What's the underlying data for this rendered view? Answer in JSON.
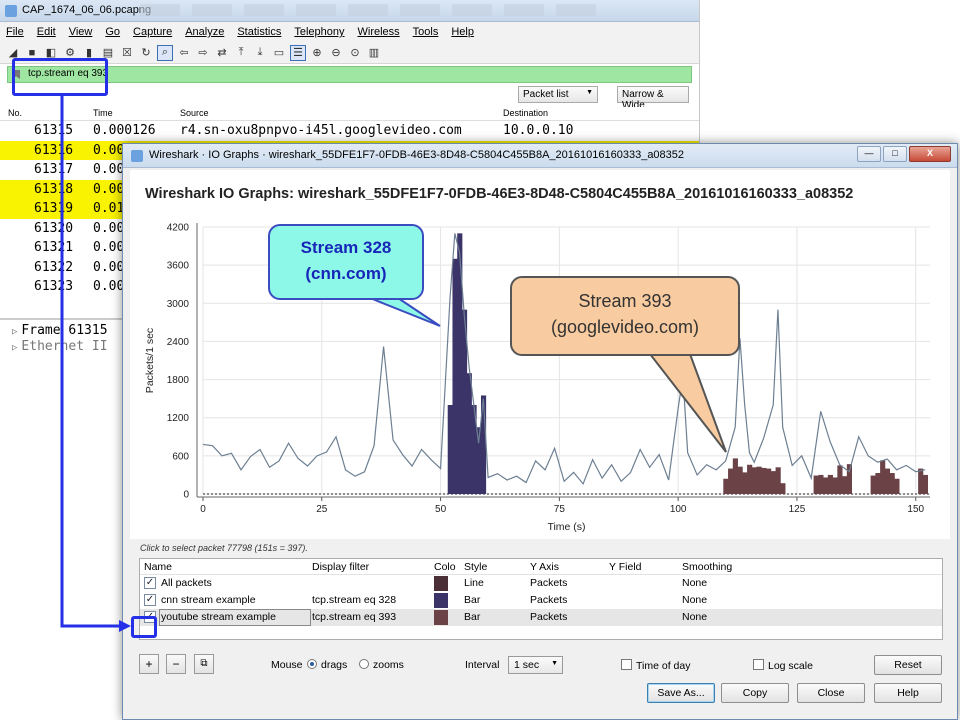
{
  "bg_window": {
    "title": "CAP_1674_06_06.pcapng",
    "menu": [
      "File",
      "Edit",
      "View",
      "Go",
      "Capture",
      "Analyze",
      "Statistics",
      "Telephony",
      "Wireless",
      "Tools",
      "Help"
    ],
    "filter_text": "tcp.stream eq 393",
    "packet_list_label": "Packet list",
    "narrow_wide_label": "Narrow & Wide",
    "columns": {
      "no": "No.",
      "time": "Time",
      "source": "Source",
      "destination": "Destination"
    },
    "rows": [
      {
        "no": "61315",
        "time": "0.000126",
        "source": "r4.sn-oxu8pnpvo-i45l.googlevideo.com",
        "dest": "10.0.0.10",
        "hl": false
      },
      {
        "no": "61316",
        "time": "0.00",
        "hl": true
      },
      {
        "no": "61317",
        "time": "0.00",
        "hl": false
      },
      {
        "no": "61318",
        "time": "0.00",
        "hl": true
      },
      {
        "no": "61319",
        "time": "0.01",
        "hl": true
      },
      {
        "no": "61320",
        "time": "0.00",
        "hl": false
      },
      {
        "no": "61321",
        "time": "0.00",
        "hl": false
      },
      {
        "no": "61322",
        "time": "0.00",
        "hl": false
      },
      {
        "no": "61323",
        "time": "0.00",
        "hl": false
      }
    ],
    "detail_line1": "Frame 61315",
    "detail_line2": "Ethernet II"
  },
  "io_window": {
    "title": "Wireshark · IO Graphs · wireshark_55DFE1F7-0FDB-46E3-8D48-C5804C455B8A_20161016160333_a08352",
    "graph_title": "Wireshark IO Graphs: wireshark_55DFE1F7-0FDB-46E3-8D48-C5804C455B8A_20161016160333_a08352",
    "hint": "Click to select packet 77798 (151s = 397).",
    "table_headers": [
      "Name",
      "Display filter",
      "Colo",
      "Style",
      "Y Axis",
      "Y Field",
      "Smoothing"
    ],
    "graphs": [
      {
        "name": "All packets",
        "filter": "",
        "style": "Line",
        "yaxis": "Packets",
        "yfield": "",
        "smoothing": "None",
        "color": "#4a3036",
        "checked": true
      },
      {
        "name": "cnn stream example",
        "filter": "tcp.stream eq 328",
        "style": "Bar",
        "yaxis": "Packets",
        "yfield": "",
        "smoothing": "None",
        "color": "#3a3468",
        "checked": true
      },
      {
        "name": "youtube stream example",
        "filter": "tcp.stream eq 393",
        "style": "Bar",
        "yaxis": "Packets",
        "yfield": "",
        "smoothing": "None",
        "color": "#6b4347",
        "checked": true
      }
    ],
    "mouse_label": "Mouse",
    "drags_label": "drags",
    "zooms_label": "zooms",
    "interval_label": "Interval",
    "interval_value": "1 sec",
    "time_of_day_label": "Time of day",
    "log_scale_label": "Log scale",
    "buttons": {
      "plus": "+",
      "minus": "−",
      "copy_graph": "⧉",
      "reset": "Reset",
      "save_as": "Save As...",
      "copy": "Copy",
      "close": "Close",
      "help": "Help"
    },
    "window_buttons": {
      "min": "—",
      "max": "□",
      "close": "X"
    }
  },
  "callouts": {
    "cnn_line1": "Stream 328",
    "cnn_line2": "(cnn.com)",
    "youtube_line1": "Stream 393",
    "youtube_line2": "(googlevideo.com)"
  },
  "colors": {
    "accent_blue": "#2330e8",
    "filter_green": "#9ee6a1",
    "highlight_yellow": "#f9f200",
    "all_line": "#6d7f92",
    "cnn_bar": "#3a3468",
    "yt_bar": "#6b4347"
  },
  "chart_data": {
    "type": "line",
    "xlabel": "Time (s)",
    "ylabel": "Packets/1 sec",
    "xlim": [
      0,
      153
    ],
    "ylim": [
      0,
      4200
    ],
    "xticks": [
      0,
      25,
      50,
      75,
      100,
      125,
      150
    ],
    "yticks": [
      0,
      600,
      1200,
      1800,
      2400,
      3000,
      3600,
      4200
    ],
    "series": [
      {
        "name": "All packets",
        "style": "line",
        "x": [
          0,
          2,
          4,
          6,
          8,
          10,
          12,
          14,
          16,
          18,
          20,
          22,
          24,
          26,
          28,
          30,
          32,
          34,
          36,
          38,
          40,
          42,
          44,
          46,
          48,
          50,
          52,
          53,
          54,
          55,
          56,
          57,
          58,
          59,
          60,
          62,
          64,
          66,
          68,
          70,
          72,
          74,
          76,
          78,
          80,
          82,
          84,
          86,
          88,
          90,
          92,
          94,
          96,
          98,
          100,
          101,
          102,
          104,
          106,
          108,
          110,
          112,
          113,
          114,
          115,
          116,
          118,
          120,
          121,
          122,
          124,
          126,
          128,
          130,
          132,
          134,
          136,
          138,
          140,
          142,
          144,
          146,
          148,
          150,
          152
        ],
        "y": [
          780,
          760,
          600,
          640,
          380,
          590,
          700,
          420,
          520,
          800,
          560,
          440,
          600,
          660,
          900,
          380,
          280,
          350,
          760,
          2320,
          850,
          620,
          440,
          700,
          540,
          400,
          3100,
          4100,
          3800,
          2800,
          2000,
          1400,
          800,
          1500,
          260,
          320,
          220,
          280,
          180,
          520,
          380,
          720,
          200,
          340,
          160,
          540,
          250,
          460,
          200,
          340,
          700,
          420,
          620,
          220,
          1350,
          1850,
          650,
          300,
          460,
          380,
          520,
          1050,
          2450,
          1400,
          650,
          500,
          880,
          1400,
          2900,
          1050,
          450,
          600,
          250,
          1300,
          820,
          460,
          350,
          900,
          600,
          500,
          550,
          380,
          450,
          350,
          380
        ]
      },
      {
        "name": "cnn stream example",
        "style": "bar",
        "x": [
          52,
          53,
          54,
          55,
          56,
          57,
          58,
          59
        ],
        "y": [
          1400,
          3700,
          4100,
          2900,
          1900,
          1400,
          1050,
          1550
        ]
      },
      {
        "name": "youtube stream example",
        "style": "bar",
        "x": [
          110,
          111,
          112,
          113,
          114,
          115,
          116,
          117,
          118,
          119,
          120,
          121,
          122,
          123,
          129,
          130,
          131,
          132,
          133,
          134,
          135,
          136,
          141,
          142,
          143,
          144,
          145,
          146,
          151,
          152
        ],
        "y": [
          240,
          400,
          560,
          430,
          340,
          460,
          420,
          430,
          410,
          400,
          360,
          420,
          170,
          0,
          290,
          300,
          260,
          300,
          260,
          450,
          280,
          470,
          290,
          330,
          530,
          400,
          330,
          240,
          400,
          300
        ]
      }
    ]
  }
}
